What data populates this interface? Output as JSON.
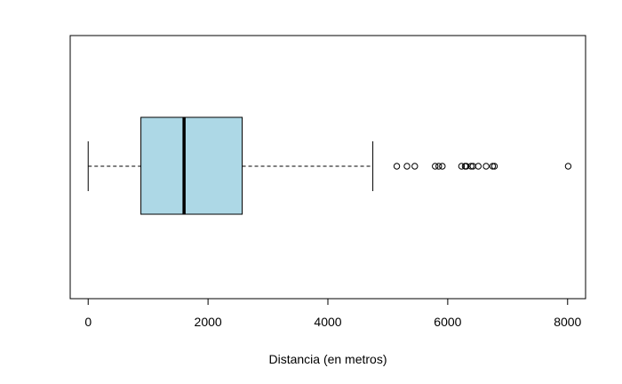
{
  "chart_data": {
    "type": "boxplot",
    "orientation": "horizontal",
    "title": "",
    "xlabel": "Distancia (en metros)",
    "ylabel": "",
    "xlim": [
      -300,
      8300
    ],
    "xticks": [
      0,
      2000,
      4000,
      6000,
      8000
    ],
    "xtick_labels": [
      "0",
      "2000",
      "4000",
      "6000",
      "8000"
    ],
    "box": {
      "whisker_low": 0,
      "q1": 880,
      "median": 1600,
      "q3": 2570,
      "whisker_high": 4750,
      "fill_color": "#add8e6"
    },
    "outliers": [
      5150,
      5320,
      5450,
      5790,
      5850,
      5910,
      6230,
      6290,
      6310,
      6390,
      6420,
      6510,
      6640,
      6750,
      6780,
      8010
    ],
    "grid": false,
    "legend": "none"
  }
}
